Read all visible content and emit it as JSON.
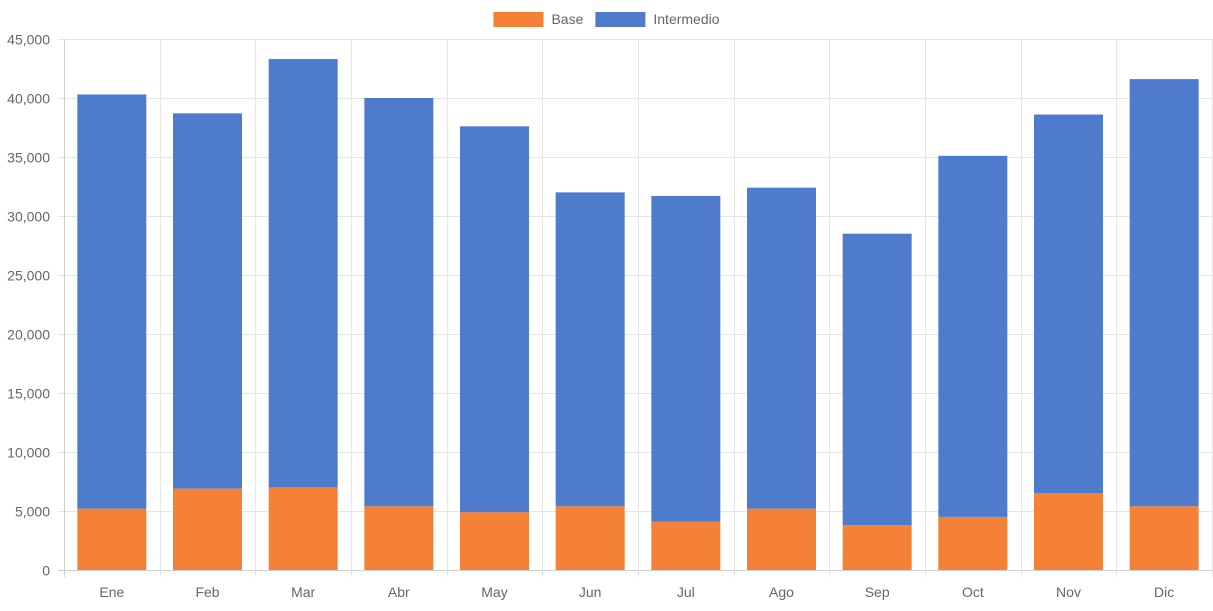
{
  "chart_data": {
    "type": "bar",
    "stacked": true,
    "categories": [
      "Ene",
      "Feb",
      "Mar",
      "Abr",
      "May",
      "Jun",
      "Jul",
      "Ago",
      "Sep",
      "Oct",
      "Nov",
      "Dic"
    ],
    "series": [
      {
        "name": "Base",
        "color": "#f58137",
        "values": [
          5200,
          6900,
          7000,
          5400,
          4900,
          5400,
          4100,
          5200,
          3800,
          4500,
          6500,
          5400
        ]
      },
      {
        "name": "Intermedio",
        "color": "#4e7bcc",
        "values": [
          35100,
          31800,
          36300,
          34600,
          32700,
          26600,
          27600,
          27200,
          24700,
          30600,
          32100,
          36200
        ]
      }
    ],
    "ylim": [
      0,
      45000
    ],
    "yticks": [
      0,
      5000,
      10000,
      15000,
      20000,
      25000,
      30000,
      35000,
      40000,
      45000
    ],
    "ytick_labels": [
      "0",
      "5,000",
      "10,000",
      "15,000",
      "20,000",
      "25,000",
      "30,000",
      "35,000",
      "40,000",
      "45,000"
    ],
    "grid": true,
    "legend_position": "top-center"
  }
}
